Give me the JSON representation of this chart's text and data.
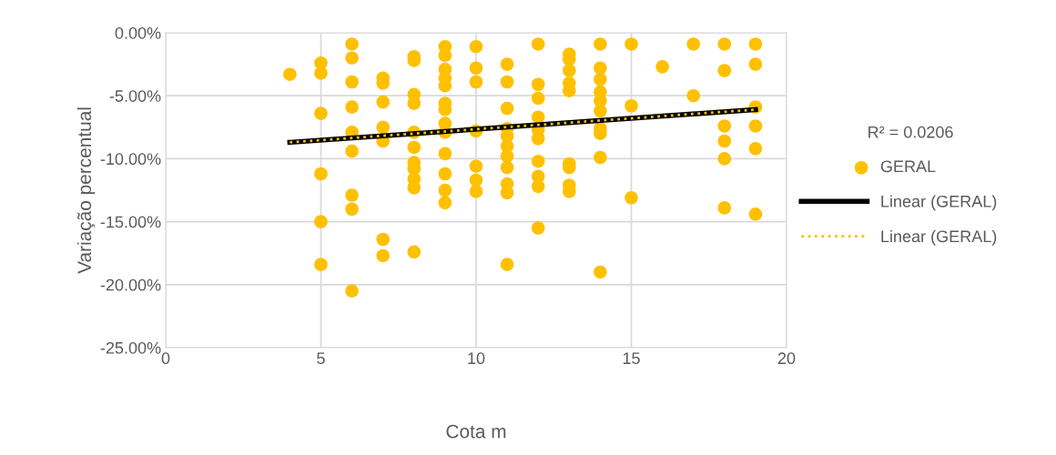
{
  "chart_data": {
    "type": "scatter",
    "xlabel": "Cota m",
    "ylabel": "Variação percentual",
    "annotations": [
      "R² = 0.0206"
    ],
    "xlim": [
      0,
      20
    ],
    "xticks": [
      0,
      5,
      10,
      15,
      20
    ],
    "ylim": [
      -25,
      0
    ],
    "yticks": [
      {
        "value": -25,
        "label": "-25.00%"
      },
      {
        "value": -20,
        "label": "-20.00%"
      },
      {
        "value": -15,
        "label": "-15.00%"
      },
      {
        "value": -10,
        "label": "-10.00%"
      },
      {
        "value": -5,
        "label": "-5.00%"
      },
      {
        "value": 0,
        "label": "0.00%"
      }
    ],
    "grid": true,
    "legend": "right",
    "series": [
      {
        "name": "GERAL",
        "color": "#ffc000",
        "marker": "circle",
        "x": [
          4,
          5,
          5,
          5,
          5,
          5,
          5,
          6,
          6,
          6,
          6,
          6,
          6,
          6,
          6,
          6,
          7,
          7,
          7,
          7,
          7,
          7,
          7,
          8,
          8,
          8,
          8,
          8,
          8,
          8,
          8,
          8,
          8,
          8,
          9,
          9,
          9,
          9,
          9,
          9,
          9,
          9,
          9,
          9,
          9,
          9,
          9,
          10,
          10,
          10,
          10,
          10,
          10,
          10,
          11,
          11,
          11,
          11,
          11,
          11,
          11,
          11,
          11,
          11,
          11,
          12,
          12,
          12,
          12,
          12,
          12,
          12,
          12,
          12,
          12,
          13,
          13,
          13,
          13,
          13,
          13,
          13,
          13,
          13,
          14,
          14,
          14,
          14,
          14,
          14,
          14,
          14,
          14,
          14,
          15,
          15,
          15,
          16,
          17,
          17,
          18,
          18,
          18,
          18,
          18,
          18,
          19,
          19,
          19,
          19,
          19,
          19
        ],
        "values": [
          -3.3,
          -2.4,
          -3.2,
          -6.4,
          -11.2,
          -15.0,
          -18.4,
          -0.9,
          -2.0,
          -3.9,
          -5.9,
          -7.9,
          -9.4,
          -12.9,
          -14.0,
          -20.5,
          -3.6,
          -4.0,
          -5.5,
          -7.5,
          -8.6,
          -16.4,
          -17.7,
          -1.9,
          -2.2,
          -4.9,
          -5.6,
          -7.9,
          -9.1,
          -10.3,
          -10.8,
          -11.6,
          -12.3,
          -17.4,
          -1.1,
          -1.8,
          -2.9,
          -3.6,
          -4.2,
          -5.6,
          -6.1,
          -7.2,
          -7.9,
          -9.6,
          -11.2,
          -12.5,
          -13.5,
          -1.1,
          -2.8,
          -3.9,
          -7.8,
          -10.6,
          -11.7,
          -12.6,
          -2.5,
          -3.9,
          -6.0,
          -7.6,
          -8.2,
          -9.0,
          -9.8,
          -10.7,
          -12.0,
          -12.7,
          -18.4,
          -0.9,
          -4.1,
          -5.2,
          -6.7,
          -7.7,
          -8.4,
          -10.2,
          -11.4,
          -12.2,
          -15.5,
          -1.7,
          -2.1,
          -3.0,
          -4.0,
          -4.6,
          -10.4,
          -10.7,
          -12.1,
          -12.6,
          -0.9,
          -2.8,
          -3.7,
          -4.7,
          -5.4,
          -6.2,
          -7.6,
          -8.0,
          -9.9,
          -19.0,
          -0.9,
          -5.8,
          -13.1,
          -2.7,
          -0.9,
          -5.0,
          -0.9,
          -3.0,
          -7.4,
          -8.6,
          -10.0,
          -13.9,
          -0.9,
          -2.5,
          -5.9,
          -7.4,
          -9.2,
          -14.4
        ]
      },
      {
        "name": "Linear (GERAL)",
        "type": "line",
        "color": "#000000",
        "line_style": "solid",
        "x": [
          4,
          19
        ],
        "values": [
          -8.7,
          -6.1
        ]
      },
      {
        "name": "Linear (GERAL)",
        "type": "line",
        "color": "#ffc000",
        "line_style": "dotted",
        "x": [
          4,
          19
        ],
        "values": [
          -8.7,
          -6.1
        ]
      }
    ]
  }
}
